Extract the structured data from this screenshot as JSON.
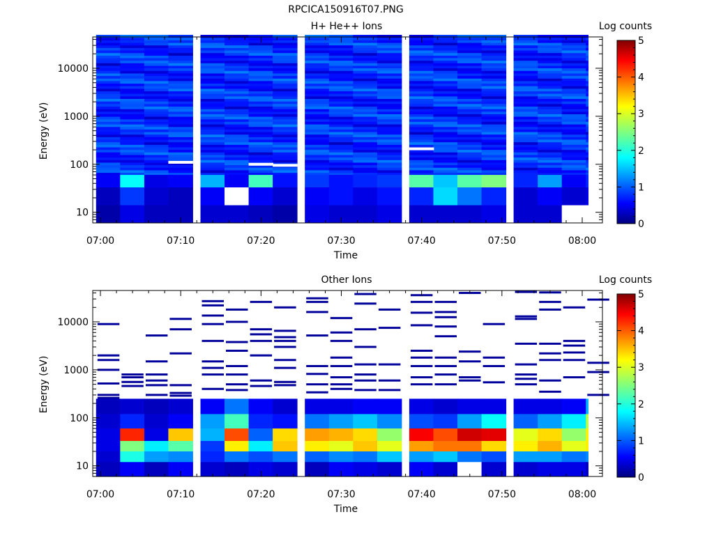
{
  "figure_title": "RPCICA150916T07.PNG",
  "chart_data": [
    {
      "type": "heatmap",
      "title": "H+ He++ Ions",
      "xlabel": "Time",
      "ylabel": "Energy (eV)",
      "yscale": "log",
      "ylim": [
        6,
        45000
      ],
      "xlim": [
        "07:00",
        "08:03"
      ],
      "x_ticks": [
        "07:00",
        "07:10",
        "07:20",
        "07:30",
        "07:40",
        "07:50",
        "08:00"
      ],
      "y_ticks": [
        {
          "value": 10,
          "label": "10"
        },
        {
          "value": 100,
          "label": "100"
        },
        {
          "value": 1000,
          "label": "1000"
        },
        {
          "value": 10000,
          "label": "10000"
        }
      ],
      "time_bins": [
        "07:01",
        "07:04",
        "07:07",
        "07:10",
        "07:14",
        "07:17",
        "07:20",
        "07:23",
        "07:27",
        "07:30",
        "07:33",
        "07:36",
        "07:40",
        "07:43",
        "07:46",
        "07:49",
        "07:53",
        "07:56",
        "07:59",
        "08:02"
      ],
      "colorbar": {
        "label": "Log counts",
        "min": 0,
        "max": 5,
        "ticks": [
          0,
          1,
          2,
          3,
          4,
          5
        ],
        "colormap": "jet"
      },
      "energy_bands": [
        {
          "energy_low": 33,
          "energy_high": 60,
          "values": [
            0.6,
            1.9,
            0.5,
            0.6,
            1.5,
            0.6,
            2.2,
            0.7,
            0.9,
            0.7,
            0.8,
            0.9,
            2.3,
            1.6,
            2.3,
            2.5,
            0.8,
            1.4,
            0.6,
            0.8
          ]
        },
        {
          "energy_low": 14,
          "energy_high": 33,
          "values": [
            0.3,
            0.9,
            0.4,
            0.3,
            0.6,
            null,
            0.6,
            0.4,
            0.6,
            0.7,
            0.5,
            0.7,
            0.8,
            1.7,
            1.2,
            0.8,
            0.4,
            0.6,
            0.4,
            0.5
          ]
        },
        {
          "energy_low": 6,
          "energy_high": 14,
          "values": [
            0.2,
            0.5,
            0.3,
            0.3,
            0.4,
            0.4,
            0.3,
            0.2,
            0.5,
            0.4,
            0.4,
            0.5,
            0.4,
            0.4,
            0.4,
            0.5,
            0.4,
            0.4,
            null,
            null
          ]
        }
      ],
      "missing_data": [
        {
          "time": "07:10",
          "energy": 110
        },
        {
          "time": "07:20",
          "energy": 100
        },
        {
          "time": "07:23",
          "energy": 95
        },
        {
          "time": "07:40",
          "energy": 210
        }
      ]
    },
    {
      "type": "heatmap",
      "title": "Other Ions",
      "xlabel": "Time",
      "ylabel": "Energy (eV)",
      "yscale": "log",
      "ylim": [
        6,
        45000
      ],
      "xlim": [
        "07:00",
        "08:03"
      ],
      "x_ticks": [
        "07:00",
        "07:10",
        "07:20",
        "07:30",
        "07:40",
        "07:50",
        "08:00"
      ],
      "y_ticks": [
        {
          "value": 10,
          "label": "10"
        },
        {
          "value": 100,
          "label": "100"
        },
        {
          "value": 1000,
          "label": "1000"
        },
        {
          "value": 10000,
          "label": "10000"
        }
      ],
      "time_bins": [
        "07:01",
        "07:04",
        "07:07",
        "07:10",
        "07:14",
        "07:17",
        "07:20",
        "07:23",
        "07:27",
        "07:30",
        "07:33",
        "07:36",
        "07:40",
        "07:43",
        "07:46",
        "07:49",
        "07:53",
        "07:56",
        "07:59",
        "08:02"
      ],
      "colorbar": {
        "label": "Log counts",
        "min": 0,
        "max": 5,
        "ticks": [
          0,
          1,
          2,
          3,
          4,
          5
        ],
        "colormap": "jet"
      },
      "energy_bands": [
        {
          "energy_low": 120,
          "energy_high": 250,
          "values": [
            0.3,
            0.4,
            0.3,
            0.4,
            0.6,
            1.2,
            0.6,
            0.4,
            0.5,
            0.5,
            0.6,
            0.6,
            0.5,
            0.4,
            0.5,
            0.5,
            0.5,
            0.5,
            0.6,
            1.5
          ]
        },
        {
          "energy_low": 60,
          "energy_high": 120,
          "values": [
            0.4,
            0.8,
            0.4,
            0.6,
            1.4,
            2.2,
            0.8,
            0.7,
            1.2,
            1.4,
            1.6,
            1.3,
            1.0,
            0.9,
            1.4,
            1.9,
            1.1,
            1.4,
            1.8,
            2.8
          ]
        },
        {
          "energy_low": 33,
          "energy_high": 60,
          "values": [
            0.5,
            4.2,
            0.5,
            3.4,
            1.5,
            4.0,
            1.1,
            3.3,
            3.6,
            3.5,
            3.3,
            2.6,
            4.4,
            4.0,
            4.6,
            4.5,
            3.0,
            3.3,
            2.6,
            3.2
          ]
        },
        {
          "energy_low": 20,
          "energy_high": 33,
          "values": [
            0.5,
            2.5,
            1.8,
            2.3,
            0.9,
            3.2,
            1.8,
            3.4,
            3.2,
            3.0,
            3.4,
            3.0,
            3.6,
            3.8,
            3.8,
            3.3,
            3.2,
            3.5,
            3.0,
            3.2
          ]
        },
        {
          "energy_low": 12,
          "energy_high": 20,
          "values": [
            0.4,
            2.0,
            1.4,
            1.3,
            0.8,
            1.2,
            1.0,
            1.2,
            1.1,
            1.3,
            1.2,
            1.6,
            1.4,
            1.6,
            1.2,
            1.0,
            1.4,
            1.4,
            1.2,
            1.3
          ]
        },
        {
          "energy_low": 6,
          "energy_high": 12,
          "values": [
            0.3,
            0.6,
            0.3,
            0.6,
            0.4,
            0.3,
            0.5,
            0.4,
            0.3,
            0.6,
            0.5,
            0.4,
            0.6,
            0.4,
            null,
            0.4,
            0.4,
            0.5,
            0.5,
            0.3
          ]
        }
      ],
      "sparse_high_energy_counts": [
        {
          "time": "07:01",
          "energy": [
            9000,
            2000,
            1600,
            1000,
            520,
            300,
            260,
            200
          ]
        },
        {
          "time": "07:04",
          "energy": [
            800,
            700,
            560,
            460
          ]
        },
        {
          "time": "07:07",
          "energy": [
            5200,
            1500,
            800,
            600,
            480,
            300
          ]
        },
        {
          "time": "07:10",
          "energy": [
            11500,
            7000,
            2200,
            480,
            330,
            290
          ]
        },
        {
          "time": "07:14",
          "energy": [
            27000,
            22000,
            13500,
            9000,
            4000,
            1500,
            1100,
            800,
            400
          ]
        },
        {
          "time": "07:17",
          "energy": [
            18000,
            10000,
            3800,
            2500,
            1200,
            800,
            500,
            380
          ]
        },
        {
          "time": "07:20",
          "energy": [
            26000,
            7000,
            5500,
            4000,
            2000,
            600,
            460
          ]
        },
        {
          "time": "07:23",
          "energy": [
            20000,
            6500,
            4800,
            4000,
            3000,
            1600,
            1100,
            560,
            480
          ]
        },
        {
          "time": "07:27",
          "energy": [
            31000,
            26000,
            16000,
            5200,
            1200,
            820,
            500,
            340
          ]
        },
        {
          "time": "07:30",
          "energy": [
            12000,
            6000,
            4000,
            1800,
            1200,
            700,
            500,
            400
          ]
        },
        {
          "time": "07:33",
          "energy": [
            38000,
            24000,
            7000,
            3000,
            1300,
            800,
            600,
            380
          ]
        },
        {
          "time": "07:36",
          "energy": [
            18000,
            7500,
            1300,
            600,
            380
          ]
        },
        {
          "time": "07:40",
          "energy": [
            36000,
            26000,
            15500,
            8500,
            2500,
            1800,
            1200,
            700,
            500
          ]
        },
        {
          "time": "07:43",
          "energy": [
            26000,
            16000,
            12500,
            8000,
            5000,
            1800,
            1200,
            800,
            500
          ]
        },
        {
          "time": "07:46",
          "energy": [
            40000,
            2400,
            1500,
            700,
            600
          ]
        },
        {
          "time": "07:49",
          "energy": [
            9000,
            1800,
            1200,
            550
          ]
        },
        {
          "time": "07:53",
          "energy": [
            42000,
            13000,
            11500,
            3500,
            1300,
            800,
            650,
            500
          ]
        },
        {
          "time": "07:56",
          "energy": [
            41000,
            26000,
            18000,
            3500,
            2200,
            1600,
            600,
            350
          ]
        },
        {
          "time": "07:59",
          "energy": [
            20000,
            4000,
            3200,
            2300,
            1600,
            700
          ]
        },
        {
          "time": "08:02",
          "energy": [
            29000,
            1400,
            900,
            300
          ]
        }
      ]
    }
  ]
}
